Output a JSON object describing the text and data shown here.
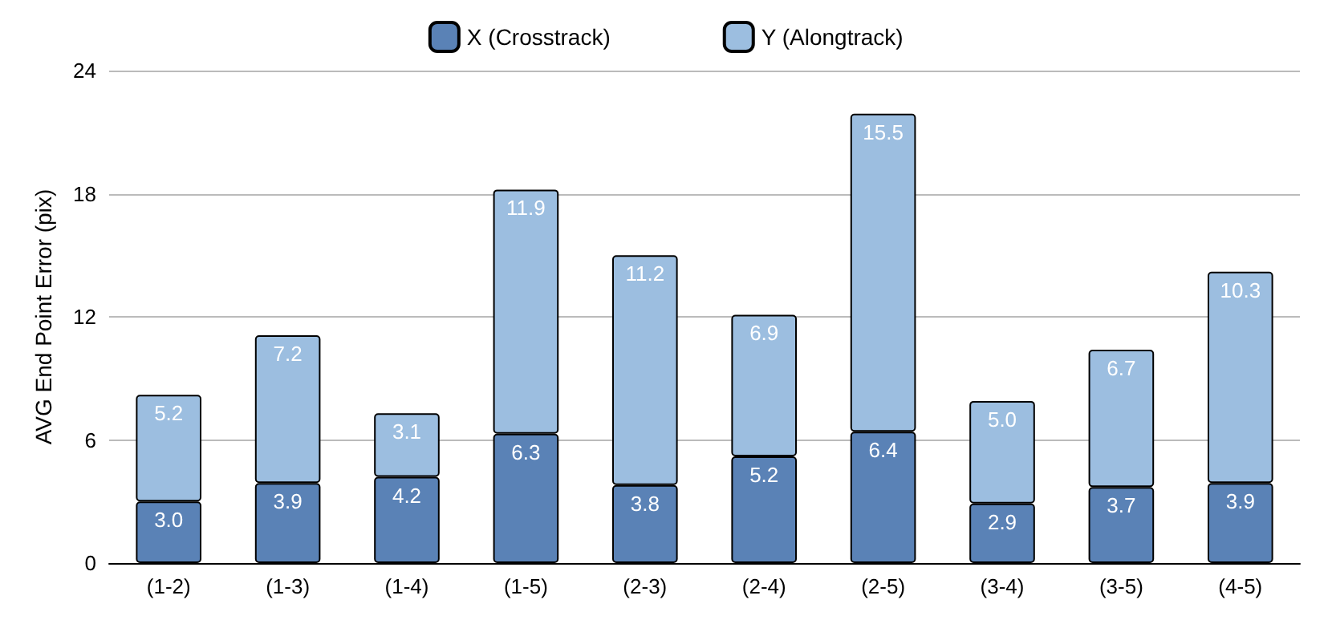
{
  "chart_data": {
    "type": "bar",
    "stacked": true,
    "ylabel": "AVG End Point Error (pix)",
    "categories": [
      "(1-2)",
      "(1-3)",
      "(1-4)",
      "(1-5)",
      "(2-3)",
      "(2-4)",
      "(2-5)",
      "(3-4)",
      "(3-5)",
      "(4-5)"
    ],
    "series": [
      {
        "name": "X (Crosstrack)",
        "color": "#5a82b6",
        "values": [
          3.0,
          3.9,
          4.2,
          6.3,
          3.8,
          5.2,
          6.4,
          2.9,
          3.7,
          3.9
        ],
        "value_labels": [
          "3.0",
          "3.9",
          "4.2",
          "6.3",
          "3.8",
          "5.2",
          "6.4",
          "2.9",
          "3.7",
          "3.9"
        ]
      },
      {
        "name": "Y (Alongtrack)",
        "color": "#9cbee0",
        "values": [
          5.2,
          7.2,
          3.1,
          11.9,
          11.2,
          6.9,
          15.5,
          5.0,
          6.7,
          10.3
        ],
        "value_labels": [
          "5.2",
          "7.2",
          "3.1",
          "11.9",
          "11.2",
          "6.9",
          "15.5",
          "5.0",
          "6.7",
          "10.3"
        ]
      }
    ],
    "ylim": [
      0,
      24
    ],
    "yticks": [
      0,
      6,
      12,
      18,
      24
    ],
    "grid": "y",
    "legend": "top"
  }
}
